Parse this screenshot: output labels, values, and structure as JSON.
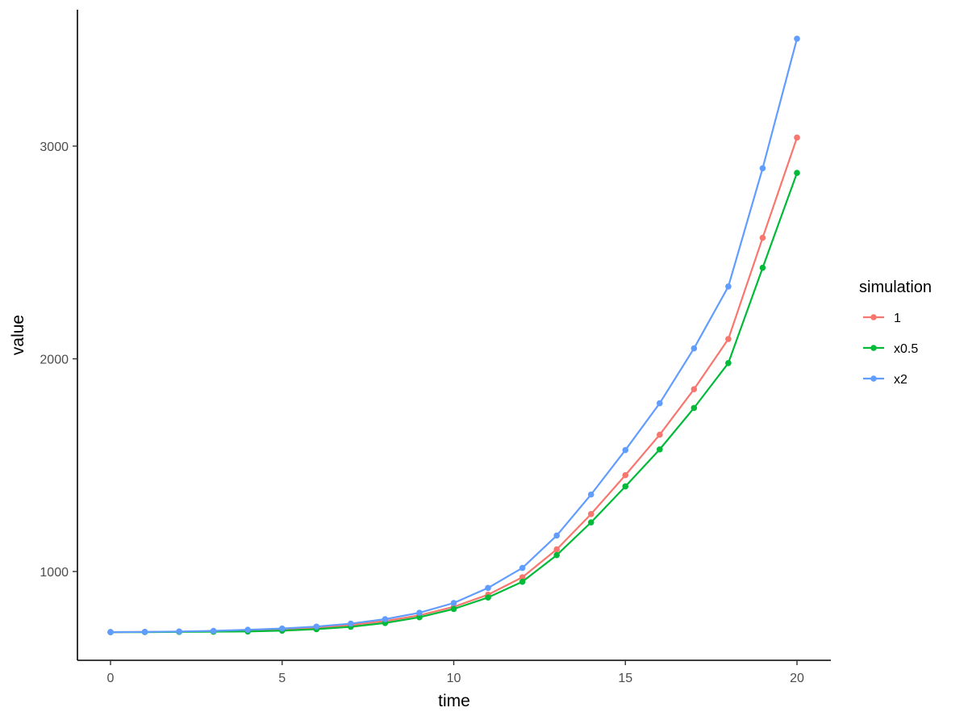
{
  "chart_data": {
    "type": "line",
    "xlabel": "time",
    "ylabel": "value",
    "xlim": [
      0,
      20
    ],
    "ylim": [
      700,
      3500
    ],
    "xticks": [
      0,
      5,
      10,
      15,
      20
    ],
    "yticks": [
      1000,
      2000,
      3000
    ],
    "grid": false,
    "legend": {
      "title": "simulation",
      "position": "right"
    },
    "x": [
      0,
      1,
      2,
      3,
      4,
      5,
      6,
      7,
      8,
      9,
      10,
      11,
      12,
      13,
      14,
      15,
      16,
      17,
      18,
      19,
      20
    ],
    "series": [
      {
        "name": "1",
        "color": "#F8766D",
        "values": [
          715,
          716,
          717,
          720,
          723,
          728,
          735,
          748,
          767,
          794,
          834,
          891,
          973,
          1104,
          1270,
          1453,
          1643,
          1857,
          2093,
          2569,
          3040
        ]
      },
      {
        "name": "x0.5",
        "color": "#00BA38",
        "values": [
          715,
          715,
          716,
          717,
          718,
          722,
          729,
          740,
          758,
          785,
          824,
          878,
          952,
          1077,
          1231,
          1400,
          1574,
          1769,
          1980,
          2428,
          2874
        ]
      },
      {
        "name": "x2",
        "color": "#619CFF",
        "values": [
          715,
          716,
          718,
          721,
          726,
          732,
          741,
          755,
          776,
          806,
          852,
          923,
          1017,
          1169,
          1362,
          1571,
          1791,
          2049,
          2340,
          2896,
          3505
        ]
      }
    ]
  }
}
